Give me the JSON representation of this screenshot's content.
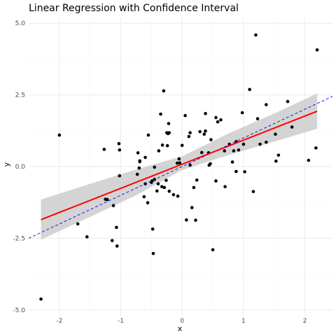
{
  "chart_data": {
    "type": "scatter",
    "title": "Linear Regression with Confidence Interval",
    "xlabel": "x",
    "ylabel": "y",
    "xlim": [
      -2.5,
      2.45
    ],
    "ylim": [
      -5.2,
      5.2
    ],
    "x_ticks": [
      -2,
      -1,
      0,
      1,
      2
    ],
    "x_tick_labels": [
      "-2",
      "-1",
      "0",
      "1",
      "2"
    ],
    "y_ticks": [
      -5,
      -2.5,
      0,
      2.5,
      5
    ],
    "y_tick_labels": [
      "-5.0",
      "-2.5",
      "0.0",
      "2.5",
      "5.0"
    ],
    "grid": true,
    "colors": {
      "points": "#000000",
      "regression": "#ff0000",
      "reference": "#0000ff",
      "confidence_band": "#cccccc",
      "grid_major": "#ebebeb",
      "grid_minor": "#f5f5f5"
    },
    "points": [
      {
        "x": -2.3,
        "y": -4.62
      },
      {
        "x": -2.0,
        "y": 1.1
      },
      {
        "x": -1.7,
        "y": -2.0
      },
      {
        "x": -1.55,
        "y": -2.45
      },
      {
        "x": -1.27,
        "y": 0.6
      },
      {
        "x": -1.25,
        "y": -1.14
      },
      {
        "x": -1.22,
        "y": -1.15
      },
      {
        "x": -1.14,
        "y": -2.58
      },
      {
        "x": -1.12,
        "y": -1.36
      },
      {
        "x": -1.07,
        "y": -2.12
      },
      {
        "x": -1.06,
        "y": -2.77
      },
      {
        "x": -1.03,
        "y": 0.8
      },
      {
        "x": -1.02,
        "y": 0.58
      },
      {
        "x": -1.02,
        "y": -0.32
      },
      {
        "x": -0.73,
        "y": -0.27
      },
      {
        "x": -0.72,
        "y": 0.48
      },
      {
        "x": -0.7,
        "y": -0.05
      },
      {
        "x": -0.69,
        "y": 0.17
      },
      {
        "x": -0.69,
        "y": 0.2
      },
      {
        "x": -0.62,
        "y": -1.05
      },
      {
        "x": -0.6,
        "y": -0.6
      },
      {
        "x": -0.6,
        "y": 0.32
      },
      {
        "x": -0.56,
        "y": -1.26
      },
      {
        "x": -0.55,
        "y": 1.1
      },
      {
        "x": -0.5,
        "y": -0.55
      },
      {
        "x": -0.49,
        "y": -0.5
      },
      {
        "x": -0.48,
        "y": -2.18
      },
      {
        "x": -0.47,
        "y": -3.03
      },
      {
        "x": -0.45,
        "y": -0.45
      },
      {
        "x": -0.45,
        "y": -0.02
      },
      {
        "x": -0.41,
        "y": -0.85
      },
      {
        "x": -0.39,
        "y": -0.6
      },
      {
        "x": -0.38,
        "y": 0.55
      },
      {
        "x": -0.35,
        "y": 1.83
      },
      {
        "x": -0.33,
        "y": -0.7
      },
      {
        "x": -0.32,
        "y": 0.75
      },
      {
        "x": -0.3,
        "y": 2.64
      },
      {
        "x": -0.29,
        "y": -0.73
      },
      {
        "x": -0.26,
        "y": -0.48
      },
      {
        "x": -0.25,
        "y": 1.18
      },
      {
        "x": -0.24,
        "y": 0.73
      },
      {
        "x": -0.23,
        "y": 1.15
      },
      {
        "x": -0.22,
        "y": 1.5
      },
      {
        "x": -0.21,
        "y": -0.86
      },
      {
        "x": -0.21,
        "y": 1.18
      },
      {
        "x": -0.14,
        "y": -0.98
      },
      {
        "x": -0.08,
        "y": 0.12
      },
      {
        "x": -0.07,
        "y": -1.03
      },
      {
        "x": -0.05,
        "y": 0.27
      },
      {
        "x": -0.04,
        "y": 0.13
      },
      {
        "x": 0.0,
        "y": 0.74
      },
      {
        "x": 0.05,
        "y": 1.78
      },
      {
        "x": 0.07,
        "y": -1.86
      },
      {
        "x": 0.11,
        "y": 1.05
      },
      {
        "x": 0.13,
        "y": 0.05
      },
      {
        "x": 0.13,
        "y": 1.18
      },
      {
        "x": 0.16,
        "y": -1.43
      },
      {
        "x": 0.19,
        "y": -0.73
      },
      {
        "x": 0.22,
        "y": -1.87
      },
      {
        "x": 0.24,
        "y": -0.47
      },
      {
        "x": 0.29,
        "y": 1.22
      },
      {
        "x": 0.32,
        "y": 0.49
      },
      {
        "x": 0.36,
        "y": 1.13
      },
      {
        "x": 0.38,
        "y": 1.85
      },
      {
        "x": 0.38,
        "y": 1.24
      },
      {
        "x": 0.43,
        "y": 0.48
      },
      {
        "x": 0.44,
        "y": 0.05
      },
      {
        "x": 0.46,
        "y": 0.1
      },
      {
        "x": 0.47,
        "y": 0.94
      },
      {
        "x": 0.5,
        "y": -2.9
      },
      {
        "x": 0.55,
        "y": 1.71
      },
      {
        "x": 0.55,
        "y": -0.5
      },
      {
        "x": 0.58,
        "y": 1.56
      },
      {
        "x": 0.63,
        "y": 1.63
      },
      {
        "x": 0.69,
        "y": 0.55
      },
      {
        "x": 0.7,
        "y": -0.7
      },
      {
        "x": 0.77,
        "y": 0.78
      },
      {
        "x": 0.82,
        "y": 0.16
      },
      {
        "x": 0.84,
        "y": 0.55
      },
      {
        "x": 0.88,
        "y": -0.17
      },
      {
        "x": 0.88,
        "y": 0.87
      },
      {
        "x": 0.92,
        "y": 0.58
      },
      {
        "x": 0.98,
        "y": 1.88
      },
      {
        "x": 1.0,
        "y": 0.78
      },
      {
        "x": 1.02,
        "y": -0.18
      },
      {
        "x": 1.1,
        "y": 2.69
      },
      {
        "x": 1.16,
        "y": -0.87
      },
      {
        "x": 1.2,
        "y": 4.59
      },
      {
        "x": 1.23,
        "y": 1.67
      },
      {
        "x": 1.27,
        "y": 0.78
      },
      {
        "x": 1.37,
        "y": 2.16
      },
      {
        "x": 1.37,
        "y": 0.85
      },
      {
        "x": 1.52,
        "y": 1.13
      },
      {
        "x": 1.53,
        "y": 0.19
      },
      {
        "x": 1.57,
        "y": 0.4
      },
      {
        "x": 1.72,
        "y": 2.27
      },
      {
        "x": 1.79,
        "y": 1.38
      },
      {
        "x": 2.06,
        "y": 0.22
      },
      {
        "x": 2.18,
        "y": 0.65
      },
      {
        "x": 2.2,
        "y": 4.07
      }
    ],
    "regression_line": {
      "x": [
        -2.3,
        2.2
      ],
      "y": [
        -1.85,
        1.93
      ]
    },
    "confidence_band": {
      "x": [
        -2.3,
        -1.5,
        -0.75,
        0.0,
        0.75,
        1.5,
        2.2
      ],
      "lower": [
        -2.55,
        -1.75,
        -1.0,
        -0.12,
        0.4,
        0.87,
        1.32
      ],
      "upper": [
        -1.15,
        -0.6,
        -0.1,
        0.36,
        1.15,
        1.85,
        2.55
      ]
    },
    "reference_line": {
      "slope": 1,
      "intercept": 0
    }
  }
}
